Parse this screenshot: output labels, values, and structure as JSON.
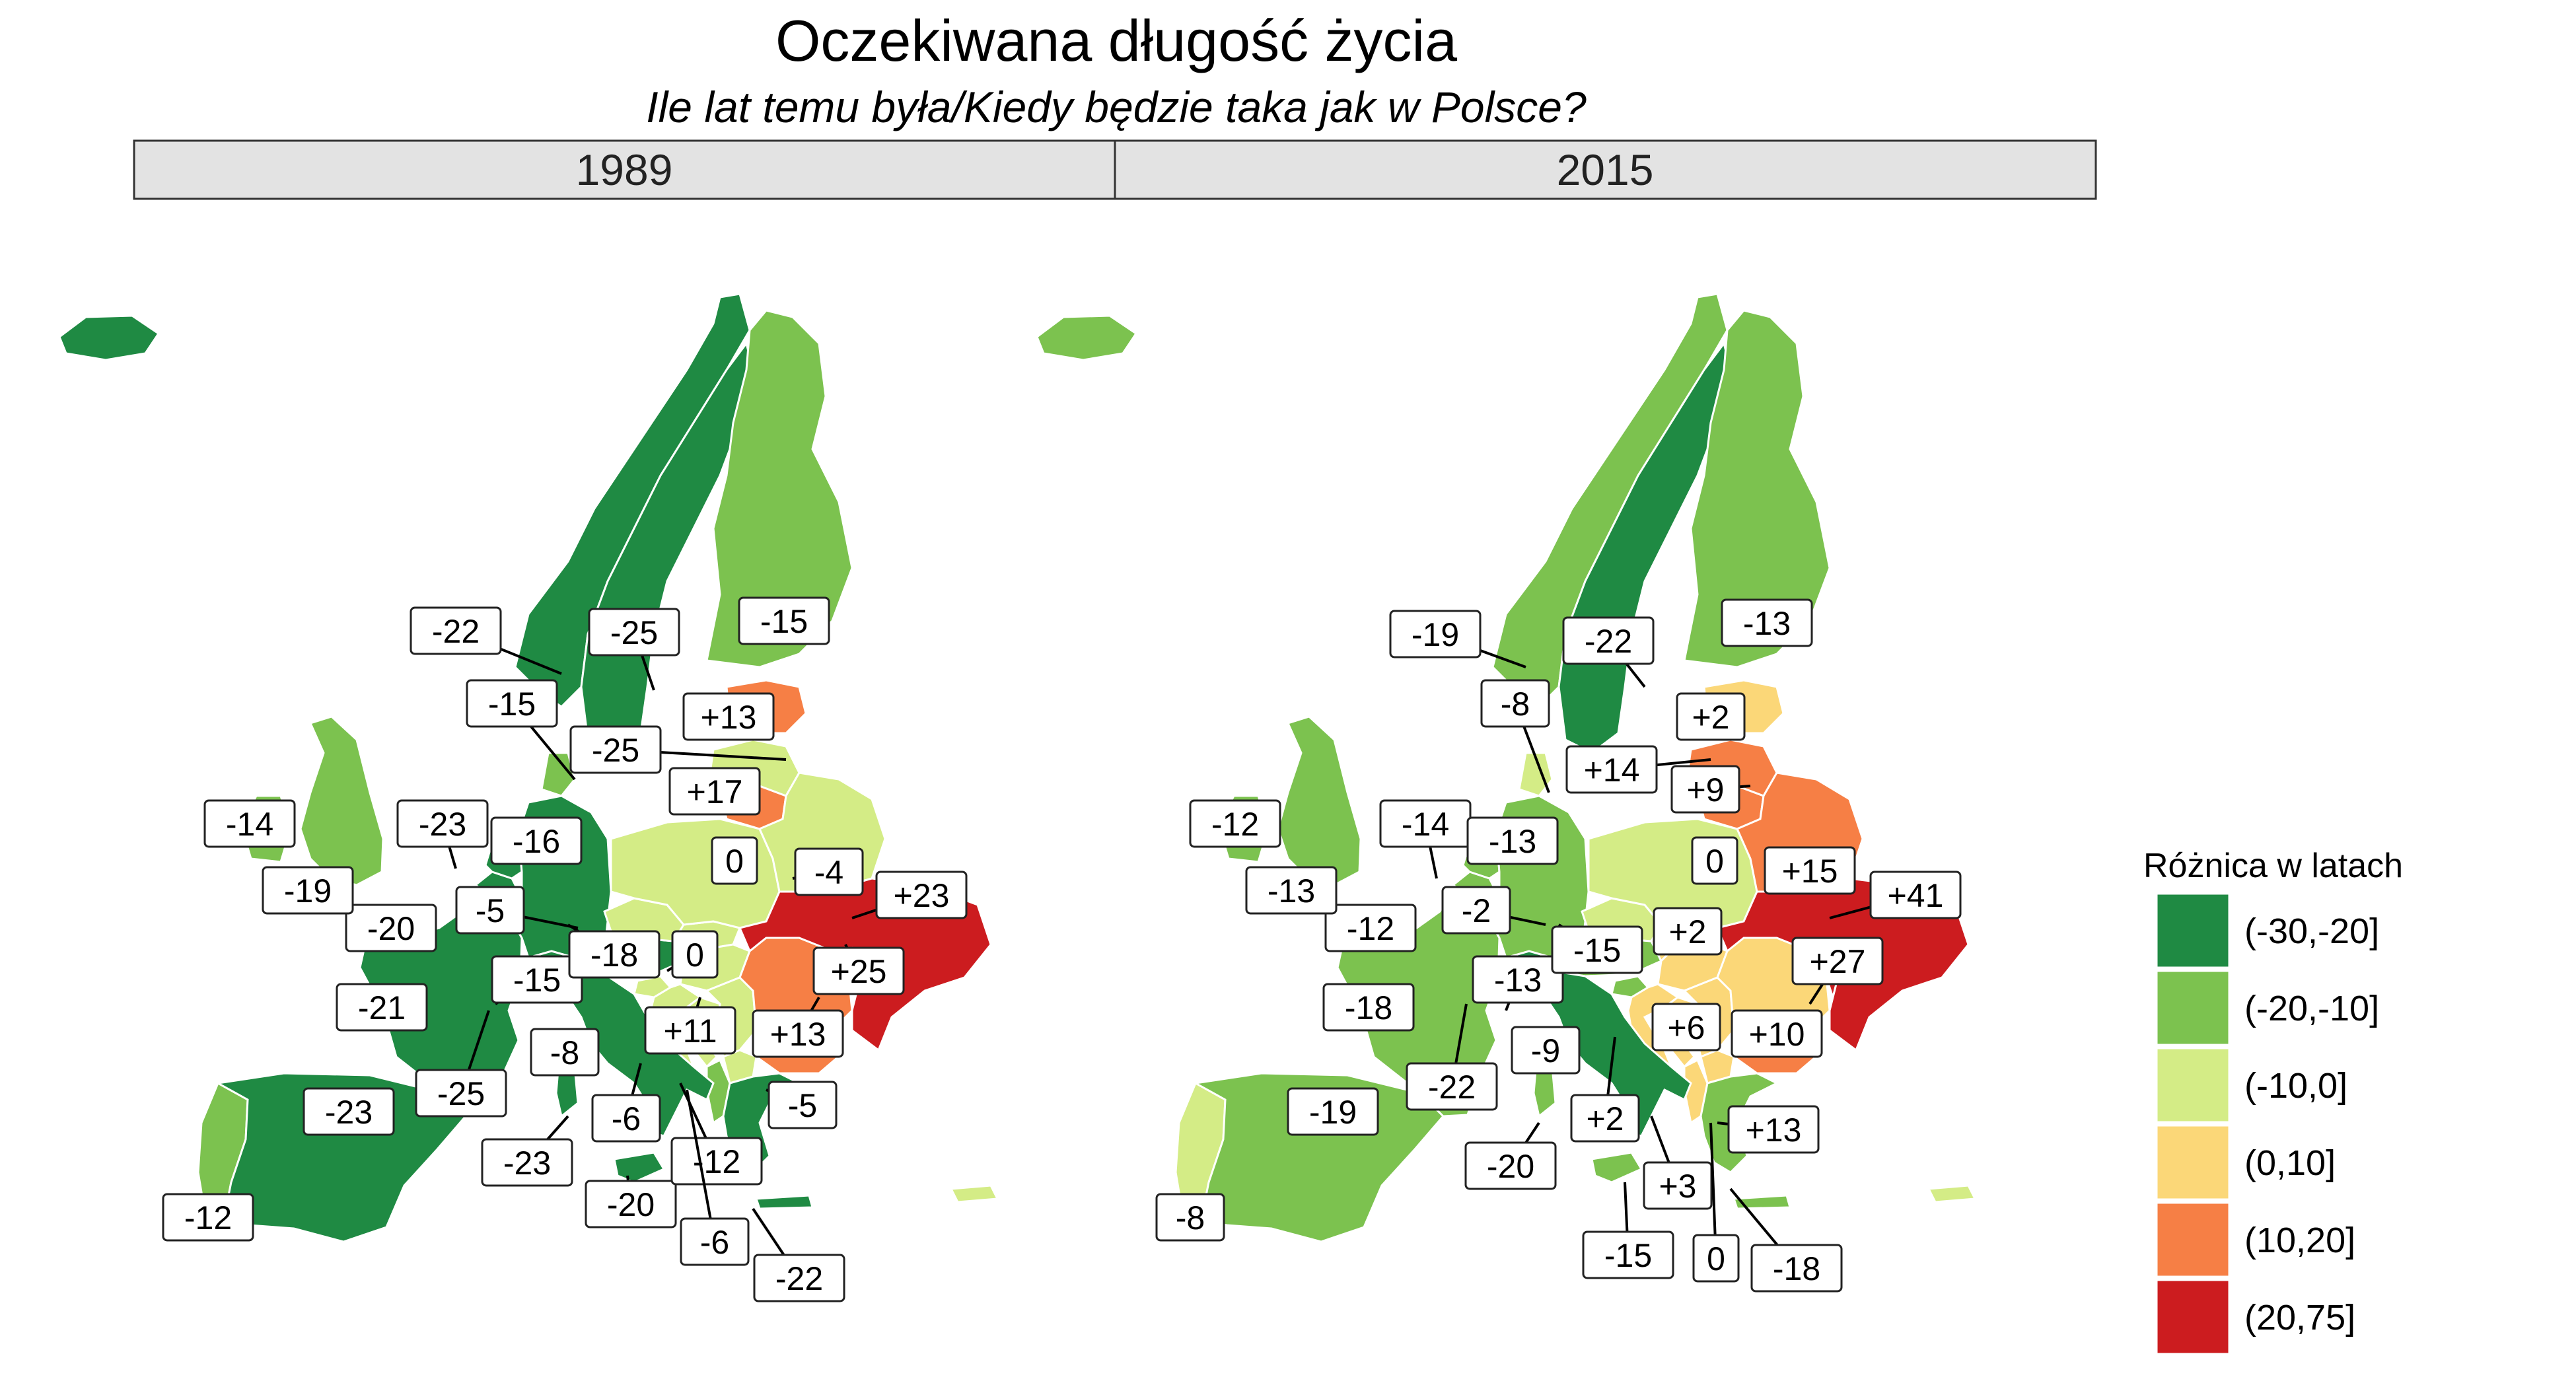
{
  "title": "Oczekiwana długość życia",
  "subtitle": "Ile lat temu była/Kiedy będzie taka jak w Polsce?",
  "colors": {
    "c1": "#1f8a43",
    "c2": "#7cc24f",
    "c3": "#d4ec86",
    "c4": "#fbd778",
    "c5": "#f67f45",
    "c6": "#cc1c1f",
    "strip": "#e3e3e3"
  },
  "panels": [
    {
      "year": "1989",
      "labels": [
        "-12",
        "-23",
        "-21",
        "-20",
        "-19",
        "-14",
        "-23",
        "-5",
        "-15",
        "-25",
        "-23",
        "-8",
        "-6",
        "-20",
        "-12",
        "-6",
        "-22",
        "-5",
        "+11",
        "+13",
        "+25",
        "+23",
        "-4",
        "0",
        "0",
        "-18",
        "-16",
        "-15",
        "-22",
        "-25",
        "-25",
        "+13",
        "+17",
        "-15"
      ]
    },
    {
      "year": "2015",
      "labels": [
        "-8",
        "-19",
        "-18",
        "-12",
        "-13",
        "-12",
        "-14",
        "-2",
        "-13",
        "-22",
        "-20",
        "-9",
        "+2",
        "-15",
        "+3",
        "0",
        "-18",
        "+13",
        "+10",
        "+6",
        "+2",
        "+27",
        "+41",
        "+15",
        "0",
        "-15",
        "-13",
        "-8",
        "-19",
        "-22",
        "+14",
        "+9",
        "+2",
        "-13"
      ]
    }
  ],
  "legend": {
    "title": "Różnica w latach",
    "items": [
      "(-30,-20]",
      "(-20,-10]",
      "(-10,0]",
      "(0,10]",
      "(10,20]",
      "(20,75]"
    ]
  }
}
